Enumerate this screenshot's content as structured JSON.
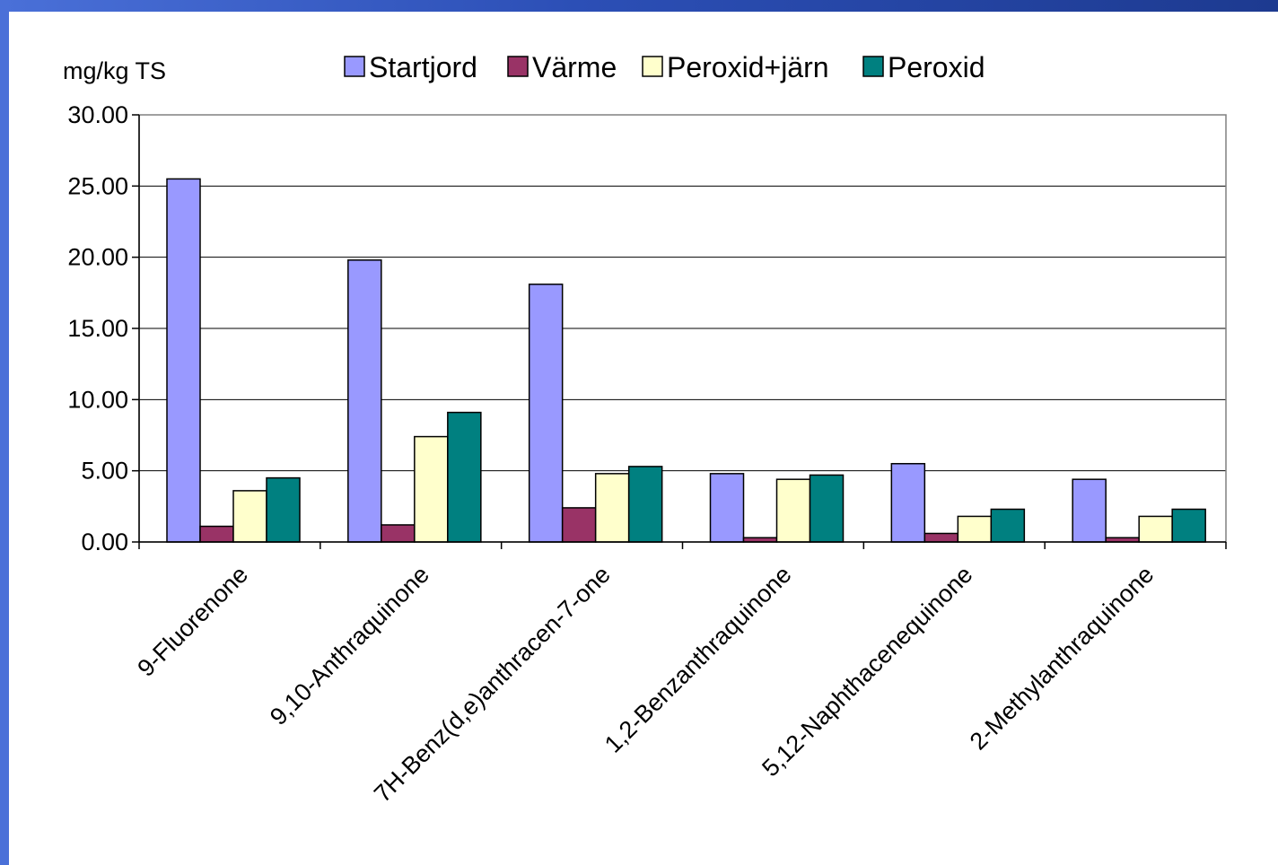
{
  "chart_data": {
    "type": "bar",
    "ylabel": "mg/kg TS",
    "ylim": [
      0,
      30
    ],
    "yticks": [
      "0.00",
      "5.00",
      "10.00",
      "15.00",
      "20.00",
      "25.00",
      "30.00"
    ],
    "grid": true,
    "legend_position": "top",
    "categories": [
      "9-Fluorenone",
      "9,10-Anthraquinone",
      "7H-Benz(d,e)anthracen-7-one",
      "1,2-Benzanthraquinone",
      "5,12-Naphthacenequinone",
      "2-Methylanthraquinone"
    ],
    "series": [
      {
        "name": "Startjord",
        "color": "#9999ff",
        "values": [
          25.5,
          19.8,
          18.1,
          4.8,
          5.5,
          4.4
        ]
      },
      {
        "name": "Värme",
        "color": "#993366",
        "values": [
          1.1,
          1.2,
          2.4,
          0.3,
          0.6,
          0.3
        ]
      },
      {
        "name": "Peroxid+järn",
        "color": "#ffffcc",
        "values": [
          3.6,
          7.4,
          4.8,
          4.4,
          1.8,
          1.8
        ]
      },
      {
        "name": "Peroxid",
        "color": "#008080",
        "values": [
          4.5,
          9.1,
          5.3,
          4.7,
          2.3,
          2.3
        ]
      }
    ]
  }
}
